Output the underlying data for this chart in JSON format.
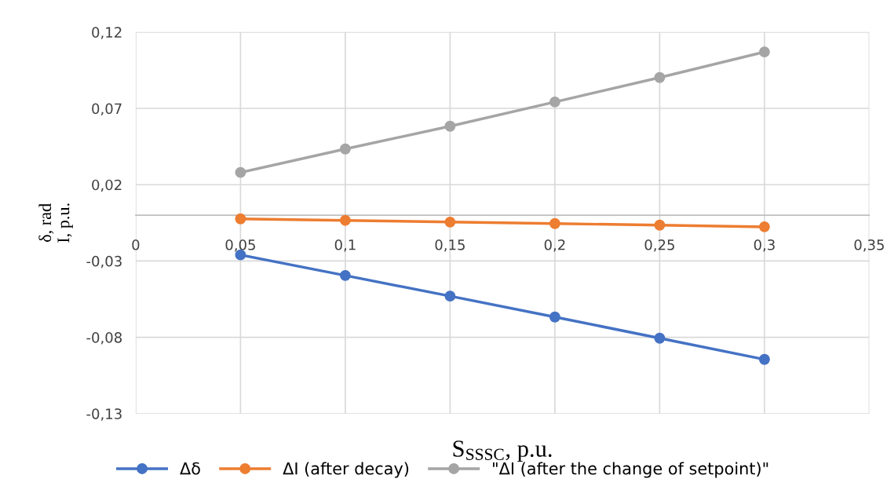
{
  "chart_data": {
    "type": "line",
    "xlabel": "S$_{SSSC}$, p.u.",
    "ylabel": "δ, rad\nI, p.u.",
    "x": [
      0.05,
      0.1,
      0.15,
      0.2,
      0.25,
      0.3
    ],
    "series": [
      {
        "name": "Δδ",
        "color": "#4472c4",
        "values": [
          -0.026,
          -0.0395,
          -0.053,
          -0.0667,
          -0.0806,
          -0.0945
        ]
      },
      {
        "name": "ΔI (after decay)",
        "color": "#ed7d31",
        "values": [
          -0.0024,
          -0.0034,
          -0.0045,
          -0.0055,
          -0.0065,
          -0.0076
        ]
      },
      {
        "name": "\"ΔI (after the change of setpoint)\"",
        "color": "#a5a5a5",
        "values": [
          0.028,
          0.0434,
          0.0583,
          0.0742,
          0.0902,
          0.107
        ]
      }
    ],
    "xlim": [
      0,
      0.35
    ],
    "xticks": [
      {
        "value": 0,
        "label": "0"
      },
      {
        "value": 0.05,
        "label": "0,05"
      },
      {
        "value": 0.1,
        "label": "0,1"
      },
      {
        "value": 0.15,
        "label": "0,15"
      },
      {
        "value": 0.2,
        "label": "0,2"
      },
      {
        "value": 0.25,
        "label": "0,25"
      },
      {
        "value": 0.3,
        "label": "0,3"
      },
      {
        "value": 0.35,
        "label": "0,35"
      }
    ],
    "ylim": [
      -0.13,
      0.12
    ],
    "yticks": [
      {
        "value": 0.12,
        "label": "0,12"
      },
      {
        "value": 0.07,
        "label": "0,07"
      },
      {
        "value": 0.02,
        "label": "0,02"
      },
      {
        "value": -0.03,
        "label": "-0,03"
      },
      {
        "value": -0.08,
        "label": "-0,08"
      },
      {
        "value": -0.13,
        "label": "-0,13"
      }
    ],
    "grid": true,
    "legend": "bottom",
    "marker": "circle",
    "line_style": "solid"
  }
}
